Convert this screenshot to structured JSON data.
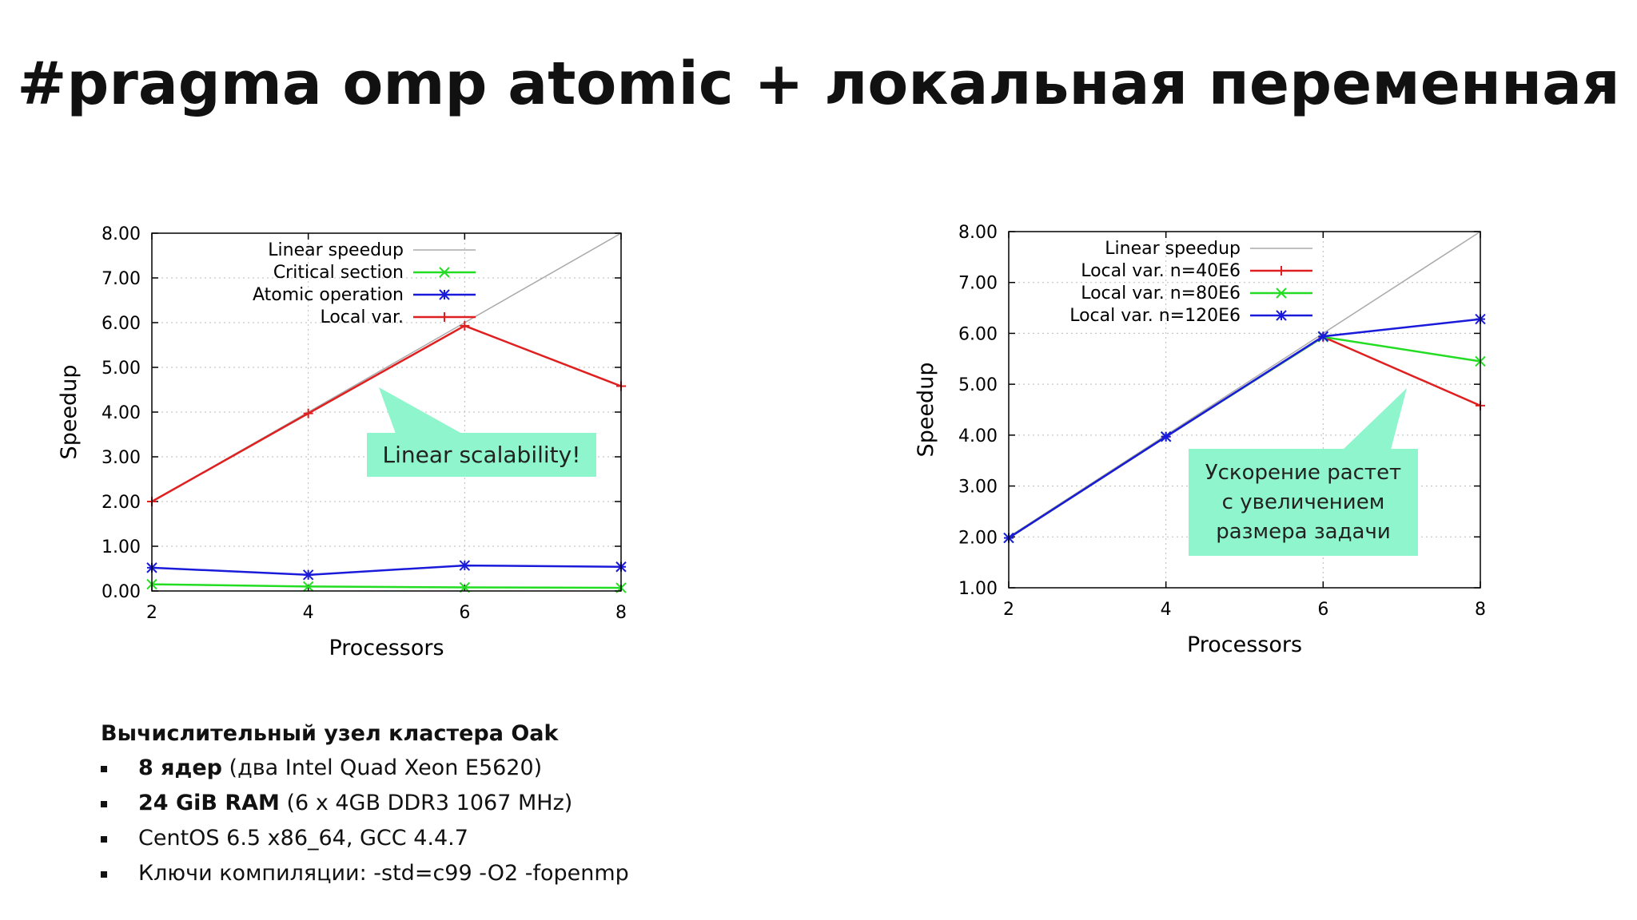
{
  "slide": {
    "title": "#pragma omp atomic + локальная переменная"
  },
  "callouts": {
    "left": "Linear scalability!",
    "right_lines": [
      "Ускорение растет",
      "с увеличением",
      "размера задачи"
    ]
  },
  "specs": {
    "heading": "Вычислительный узел кластера Oak",
    "items": [
      {
        "bold": "8 ядер",
        "rest": " (два Intel Quad Xeon E5620)"
      },
      {
        "bold": "24 GiB RAM",
        "rest": " (6 x 4GB DDR3 1067 MHz)"
      },
      {
        "bold": "",
        "rest": "CentOS 6.5 x86_64, GCC 4.4.7"
      },
      {
        "bold": "",
        "rest": "Ключи компиляции: -std=c99 -O2  -fopenmp"
      }
    ]
  },
  "colors": {
    "linear": "#aaaaaa",
    "green": "#22dd22",
    "blue": "#1a1adb",
    "red": "#e02020",
    "callout_bg": "#8ff5cc"
  },
  "chart_data": [
    {
      "type": "line",
      "x": [
        2,
        4,
        6,
        8
      ],
      "xlabel": "Processors",
      "ylabel": "Speedup",
      "xticks": [
        "2",
        "4",
        "6",
        "8"
      ],
      "yticks": [
        "0.00",
        "1.00",
        "2.00",
        "3.00",
        "4.00",
        "5.00",
        "6.00",
        "7.00",
        "8.00"
      ],
      "ylim": [
        0,
        8
      ],
      "xlim": [
        2,
        8
      ],
      "grid": true,
      "legend_position": "top-left",
      "series": [
        {
          "name": "Linear speedup",
          "values": [
            2,
            4,
            6,
            8
          ],
          "color": "#aaaaaa",
          "marker": "none"
        },
        {
          "name": "Critical section",
          "values": [
            0.15,
            0.1,
            0.08,
            0.07
          ],
          "color": "#22dd22",
          "marker": "x"
        },
        {
          "name": "Atomic operation",
          "values": [
            0.52,
            0.36,
            0.57,
            0.54
          ],
          "color": "#1a1adb",
          "marker": "star"
        },
        {
          "name": "Local var.",
          "values": [
            2.0,
            3.97,
            5.93,
            4.58
          ],
          "color": "#e02020",
          "marker": "plus"
        }
      ]
    },
    {
      "type": "line",
      "x": [
        2,
        4,
        6,
        8
      ],
      "xlabel": "Processors",
      "ylabel": "Speedup",
      "xticks": [
        "2",
        "4",
        "6",
        "8"
      ],
      "yticks": [
        "1.00",
        "2.00",
        "3.00",
        "4.00",
        "5.00",
        "6.00",
        "7.00",
        "8.00"
      ],
      "ylim": [
        1,
        8
      ],
      "xlim": [
        2,
        8
      ],
      "grid": true,
      "legend_position": "top-left",
      "series": [
        {
          "name": "Linear speedup",
          "values": [
            2,
            4,
            6,
            8
          ],
          "color": "#aaaaaa",
          "marker": "none"
        },
        {
          "name": "Local var. n=40E6",
          "values": [
            1.98,
            3.97,
            5.93,
            4.58
          ],
          "color": "#e02020",
          "marker": "plus"
        },
        {
          "name": "Local var. n=80E6",
          "values": [
            1.98,
            3.97,
            5.93,
            5.45
          ],
          "color": "#22dd22",
          "marker": "x"
        },
        {
          "name": "Local var. n=120E6",
          "values": [
            1.98,
            3.97,
            5.94,
            6.28
          ],
          "color": "#1a1adb",
          "marker": "star"
        }
      ]
    }
  ]
}
